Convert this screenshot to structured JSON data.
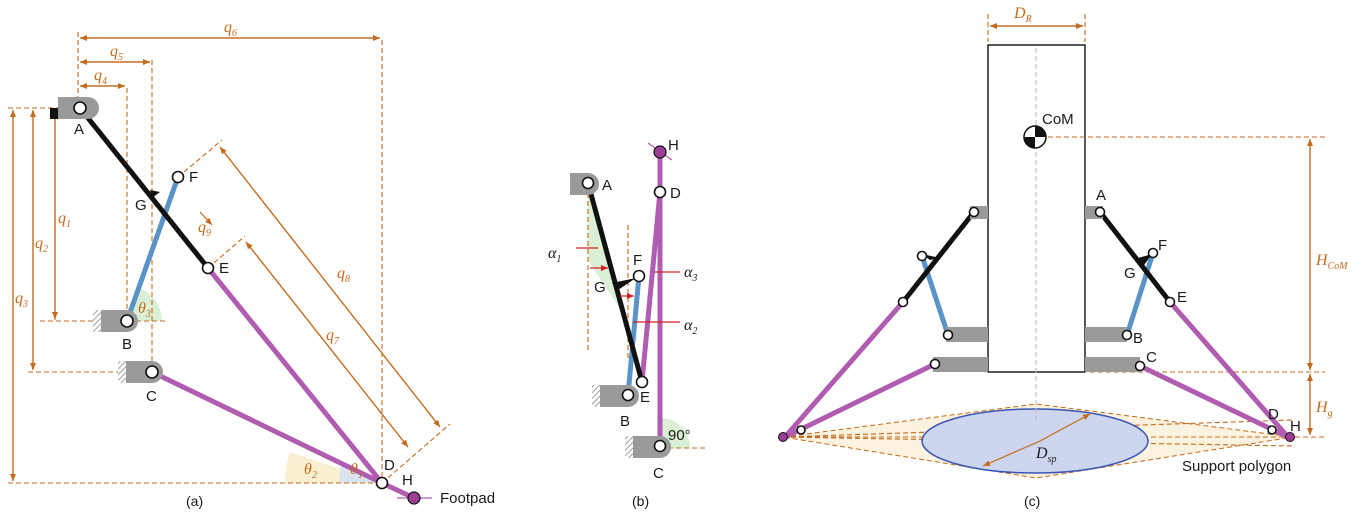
{
  "panel_a": {
    "caption": "(a)",
    "points": [
      "A",
      "B",
      "C",
      "D",
      "E",
      "F",
      "G",
      "H"
    ],
    "dims": [
      "q",
      "q",
      "q",
      "q",
      "q",
      "q",
      "q",
      "q",
      "q"
    ],
    "dim_subs": [
      "1",
      "2",
      "3",
      "4",
      "5",
      "6",
      "7",
      "8",
      "9"
    ],
    "angles": [
      "θ",
      "θ",
      "θ"
    ],
    "angle_subs": [
      "1",
      "2",
      "3"
    ],
    "footpad": "Footpad"
  },
  "panel_b": {
    "caption": "(b)",
    "points": [
      "A",
      "B",
      "C",
      "D",
      "E",
      "F",
      "G",
      "H"
    ],
    "alphas": [
      "α",
      "α",
      "α"
    ],
    "alpha_subs": [
      "1",
      "2",
      "3"
    ],
    "right_angle": "90°"
  },
  "panel_c": {
    "caption": "(c)",
    "points": [
      "A",
      "B",
      "C",
      "D",
      "E",
      "F",
      "G",
      "H"
    ],
    "com": "CoM",
    "dr": "D",
    "dr_sub": "R",
    "hcom": "H",
    "hcom_sub": "CoM",
    "hg": "H",
    "hg_sub": "g",
    "dsp": "D",
    "dsp_sub": "sp",
    "support": "Support polygon"
  },
  "colors": {
    "orange": "#c46a1a",
    "black_link": "#111111",
    "blue_link": "#5a93c7",
    "purple_link": "#b05cb0",
    "ellipse_fill": "#cdd6ee",
    "ellipse_stroke": "#3a56b4"
  }
}
